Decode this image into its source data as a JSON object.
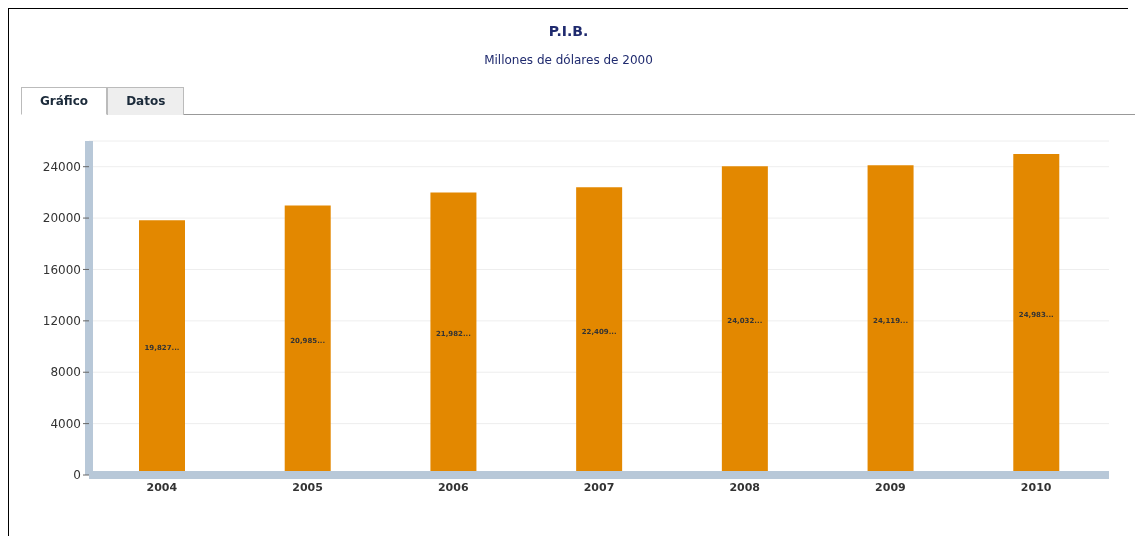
{
  "chart_data": {
    "type": "bar",
    "title": "P.I.B.",
    "subtitle": "Millones de dólares de 2000",
    "annotations": [
      "Gráfico",
      "Datos"
    ],
    "categories": [
      "2004",
      "2005",
      "2006",
      "2007",
      "2008",
      "2009",
      "2010"
    ],
    "values": [
      19827,
      20985,
      21982,
      22409,
      24032,
      24119,
      24983
    ],
    "value_labels": [
      "19,827...",
      "20,985...",
      "21,982...",
      "22,409...",
      "24,032...",
      "24,119...",
      "24,983..."
    ],
    "color": "#e38800",
    "ylim": [
      0,
      26000
    ],
    "yticks": [
      0,
      4000,
      8000,
      12000,
      16000,
      20000,
      24000
    ],
    "grid": "y"
  }
}
